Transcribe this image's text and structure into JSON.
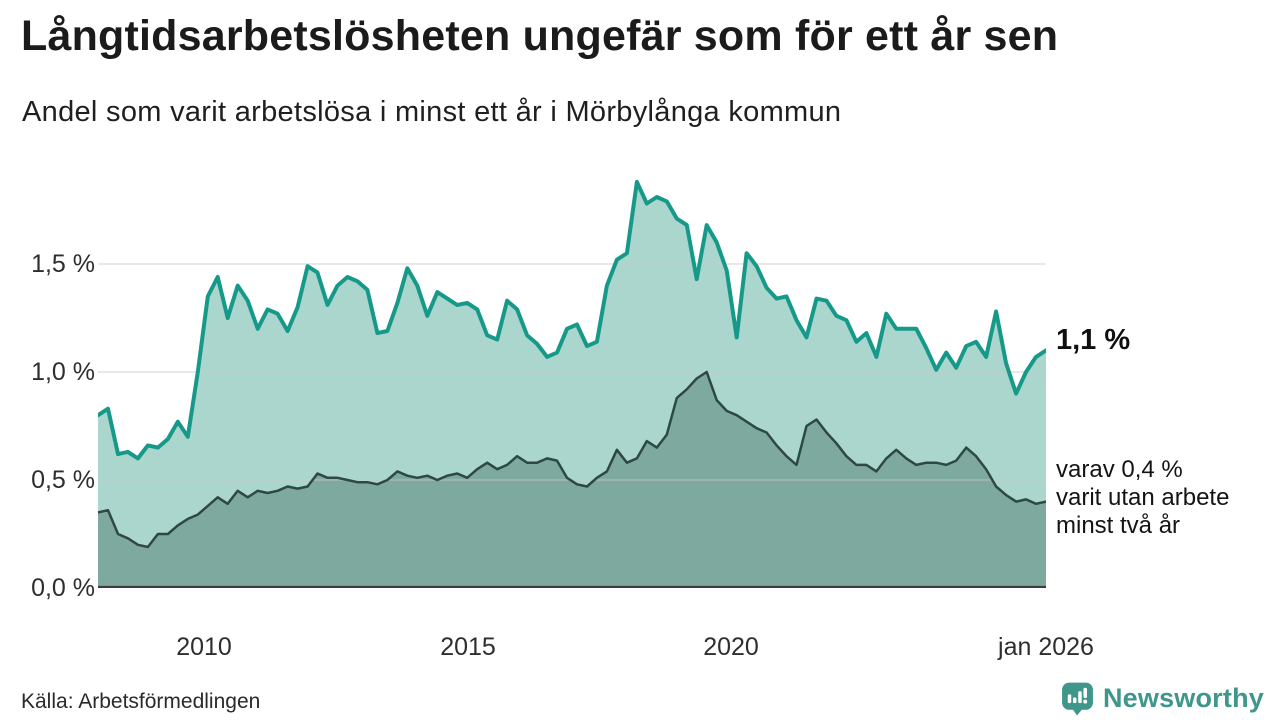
{
  "title": "Långtidsarbetslösheten ungefär som för ett år sen",
  "subtitle": "Andel som varit arbetslösa i minst ett år i Mörbylånga kommun",
  "source": "Källa: Arbetsförmedlingen",
  "branding": {
    "name": "Newsworthy",
    "icon": "newsworthy-chart-bubble-icon",
    "color": "#3f968b"
  },
  "annotations": {
    "latest_total": "1,1 %",
    "secondary_line1": "varav 0,4 %",
    "secondary_line2": "varit utan arbete",
    "secondary_line3": "minst två år"
  },
  "chart_data": {
    "type": "area",
    "title": "Långtidsarbetslösheten ungefär som för ett år sen",
    "subtitle": "Andel som varit arbetslösa i minst ett år i Mörbylånga kommun",
    "unit": "%",
    "x_start": 2008.0,
    "x_end": 2026.0,
    "ylim": [
      0,
      2.03
    ],
    "grid": "horizontal",
    "legend_position": "right-annotations",
    "x_ticks": [
      {
        "value": 2010,
        "label": "2010"
      },
      {
        "value": 2015,
        "label": "2015"
      },
      {
        "value": 2020,
        "label": "2020"
      },
      {
        "value": 2026,
        "label": "jan 2026"
      }
    ],
    "y_ticks": [
      {
        "value": 0.0,
        "label": "0,0 %"
      },
      {
        "value": 0.5,
        "label": "0,5 %"
      },
      {
        "value": 1.0,
        "label": "1,0 %"
      },
      {
        "value": 1.5,
        "label": "1,5 %"
      }
    ],
    "series": [
      {
        "name": "arbetslösa minst ett år",
        "latest_value_pct": 1.1,
        "line_color": "#17998a",
        "fill_color": "#aad6ce",
        "line_width": 4,
        "values": [
          0.8,
          0.83,
          0.62,
          0.63,
          0.6,
          0.66,
          0.65,
          0.69,
          0.77,
          0.7,
          1.0,
          1.35,
          1.44,
          1.25,
          1.4,
          1.33,
          1.2,
          1.29,
          1.27,
          1.19,
          1.3,
          1.49,
          1.46,
          1.31,
          1.4,
          1.44,
          1.42,
          1.38,
          1.18,
          1.19,
          1.32,
          1.48,
          1.4,
          1.26,
          1.37,
          1.34,
          1.31,
          1.32,
          1.29,
          1.17,
          1.15,
          1.33,
          1.29,
          1.17,
          1.13,
          1.07,
          1.09,
          1.2,
          1.22,
          1.12,
          1.14,
          1.4,
          1.52,
          1.55,
          1.88,
          1.78,
          1.81,
          1.79,
          1.71,
          1.68,
          1.43,
          1.68,
          1.6,
          1.47,
          1.16,
          1.55,
          1.49,
          1.39,
          1.34,
          1.35,
          1.24,
          1.16,
          1.34,
          1.33,
          1.26,
          1.24,
          1.14,
          1.18,
          1.07,
          1.27,
          1.2,
          1.2,
          1.2,
          1.11,
          1.01,
          1.09,
          1.02,
          1.12,
          1.14,
          1.07,
          1.28,
          1.04,
          0.9,
          1.0,
          1.07,
          1.1
        ]
      },
      {
        "name": "varav utan arbete minst två år",
        "latest_value_pct": 0.4,
        "line_color": "#2e4944",
        "fill_color": "#7ea99e",
        "line_width": 2.5,
        "values": [
          0.35,
          0.36,
          0.25,
          0.23,
          0.2,
          0.19,
          0.25,
          0.25,
          0.29,
          0.32,
          0.34,
          0.38,
          0.42,
          0.39,
          0.45,
          0.42,
          0.45,
          0.44,
          0.45,
          0.47,
          0.46,
          0.47,
          0.53,
          0.51,
          0.51,
          0.5,
          0.49,
          0.49,
          0.48,
          0.5,
          0.54,
          0.52,
          0.51,
          0.52,
          0.5,
          0.52,
          0.53,
          0.51,
          0.55,
          0.58,
          0.55,
          0.57,
          0.61,
          0.58,
          0.58,
          0.6,
          0.59,
          0.51,
          0.48,
          0.47,
          0.51,
          0.54,
          0.64,
          0.58,
          0.6,
          0.68,
          0.65,
          0.71,
          0.88,
          0.92,
          0.97,
          1.0,
          0.87,
          0.82,
          0.8,
          0.77,
          0.74,
          0.72,
          0.66,
          0.61,
          0.57,
          0.75,
          0.78,
          0.72,
          0.67,
          0.61,
          0.57,
          0.57,
          0.54,
          0.6,
          0.64,
          0.6,
          0.57,
          0.58,
          0.58,
          0.57,
          0.59,
          0.65,
          0.61,
          0.55,
          0.47,
          0.43,
          0.4,
          0.41,
          0.39,
          0.4
        ]
      }
    ],
    "baseline_color": "#3d3d3d",
    "grid_color": "#c9c9c9"
  }
}
